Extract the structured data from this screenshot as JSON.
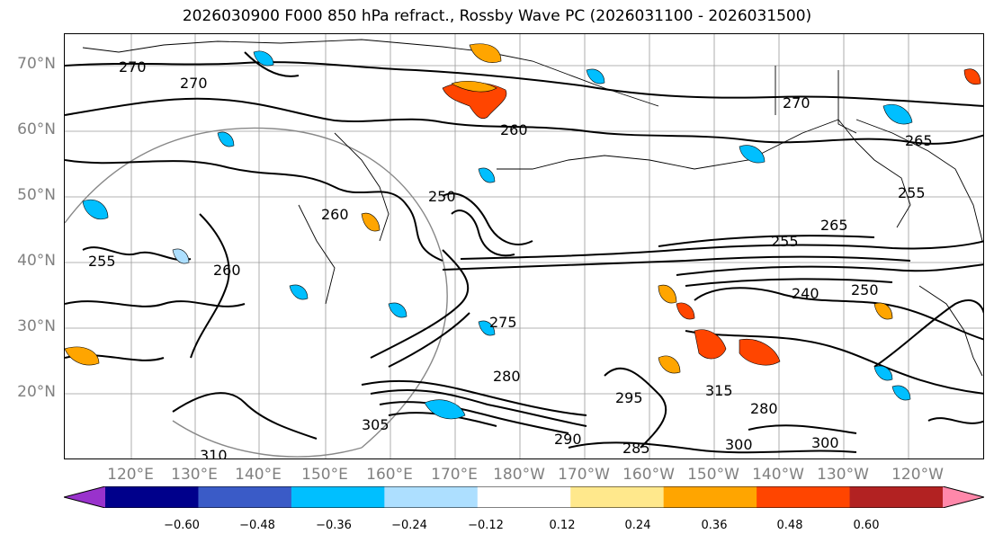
{
  "title": "2026030900 F000 850 hPa refract., Rossby Wave PC (2026031100 - 2026031500)",
  "latitude_labels": [
    "70°N",
    "60°N",
    "50°N",
    "40°N",
    "30°N",
    "20°N"
  ],
  "longitude_labels": [
    "120°E",
    "130°E",
    "140°E",
    "150°E",
    "160°E",
    "170°E",
    "180°W",
    "170°W",
    "160°W",
    "150°W",
    "140°W",
    "130°W",
    "120°W"
  ],
  "contour_labels": [
    "270",
    "270",
    "270",
    "260",
    "260",
    "260",
    "255",
    "255",
    "255",
    "250",
    "250",
    "240",
    "265",
    "265",
    "275",
    "280",
    "280",
    "285",
    "290",
    "295",
    "300",
    "300",
    "305",
    "310",
    "315"
  ],
  "colorbar": {
    "colors": [
      "#9932CC",
      "#00008B",
      "#3A5BC7",
      "#00BFFF",
      "#ADDFFF",
      "#FFFFFF",
      "#FFE88C",
      "#FFA500",
      "#FF4500",
      "#B22222",
      "#FF88AA"
    ],
    "tick_labels": [
      "−0.60",
      "−0.48",
      "−0.36",
      "−0.24",
      "−0.12",
      "0.12",
      "0.24",
      "0.36",
      "0.48",
      "0.60"
    ]
  }
}
